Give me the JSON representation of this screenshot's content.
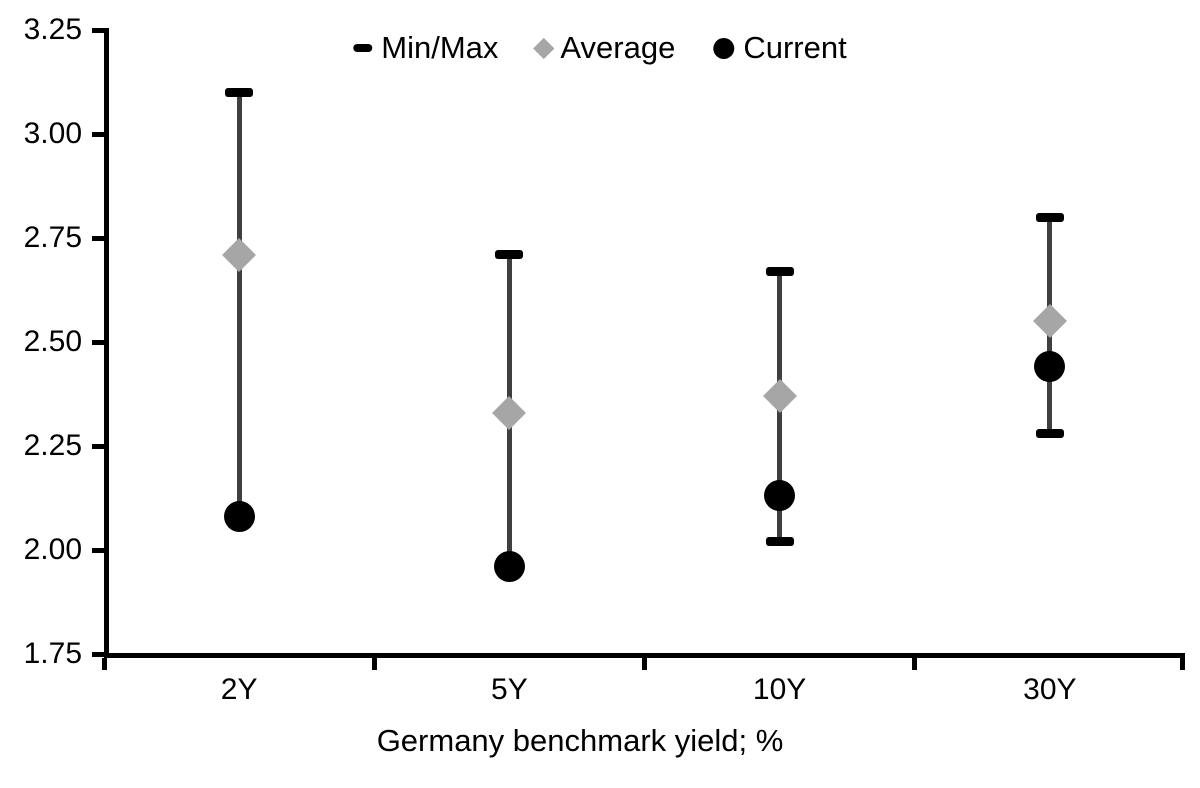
{
  "chart_data": {
    "type": "scatter",
    "subtype": "min-max-range-with-average-and-current",
    "title": "",
    "xlabel": "Germany benchmark yield; %",
    "ylabel": "",
    "categories": [
      "2Y",
      "5Y",
      "10Y",
      "30Y"
    ],
    "series": [
      {
        "name": "Min/Max",
        "marker": "dash",
        "min": [
          2.08,
          1.96,
          2.02,
          2.28
        ],
        "max": [
          3.1,
          2.71,
          2.67,
          2.8
        ]
      },
      {
        "name": "Average",
        "marker": "diamond",
        "values": [
          2.71,
          2.33,
          2.37,
          2.55
        ]
      },
      {
        "name": "Current",
        "marker": "circle",
        "values": [
          2.08,
          1.96,
          2.13,
          2.44
        ]
      }
    ],
    "ylim": [
      1.75,
      3.25
    ],
    "y_tick_step": 0.25,
    "y_tick_labels": [
      "3.25",
      "3.00",
      "2.75",
      "2.50",
      "2.25",
      "2.00",
      "1.75"
    ],
    "grid": false,
    "legend_position": "top-center"
  },
  "colors": {
    "background": "#ffffff",
    "text": "#000000",
    "axis": "#000000",
    "minmax_cap": "#000000",
    "whisker_line": "#3f3f3f",
    "average_marker": "#a6a6a6",
    "current_marker": "#000000"
  }
}
